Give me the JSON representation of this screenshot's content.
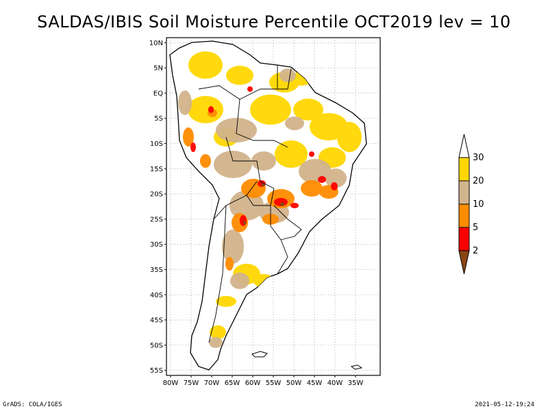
{
  "title": "SALDAS/IBIS Soil Moisture Percentile OCT2019 lev = 10",
  "footer": {
    "left": "GrADS: COLA/IGES",
    "right": "2021-05-12-19:24"
  },
  "map": {
    "lon_range": [
      -81,
      -29
    ],
    "lat_range": [
      -56,
      11
    ],
    "lat_ticks": [
      {
        "value": 10,
        "label": "10N"
      },
      {
        "value": 5,
        "label": "5N"
      },
      {
        "value": 0,
        "label": "EQ"
      },
      {
        "value": -5,
        "label": "5S"
      },
      {
        "value": -10,
        "label": "10S"
      },
      {
        "value": -15,
        "label": "15S"
      },
      {
        "value": -20,
        "label": "20S"
      },
      {
        "value": -25,
        "label": "25S"
      },
      {
        "value": -30,
        "label": "30S"
      },
      {
        "value": -35,
        "label": "35S"
      },
      {
        "value": -40,
        "label": "40S"
      },
      {
        "value": -45,
        "label": "45S"
      },
      {
        "value": -50,
        "label": "50S"
      },
      {
        "value": -55,
        "label": "55S"
      }
    ],
    "lon_ticks": [
      {
        "value": -80,
        "label": "80W"
      },
      {
        "value": -75,
        "label": "75W"
      },
      {
        "value": -70,
        "label": "70W"
      },
      {
        "value": -65,
        "label": "65W"
      },
      {
        "value": -60,
        "label": "60W"
      },
      {
        "value": -55,
        "label": "55W"
      },
      {
        "value": -50,
        "label": "50W"
      },
      {
        "value": -45,
        "label": "45W"
      },
      {
        "value": -40,
        "label": "40W"
      },
      {
        "value": -35,
        "label": "35W"
      }
    ],
    "grid": true
  },
  "colorbar": {
    "bins": [
      {
        "lower": null,
        "upper": 2,
        "color": "#8b4513"
      },
      {
        "lower": 2,
        "upper": 5,
        "color": "#ff0000"
      },
      {
        "lower": 5,
        "upper": 10,
        "color": "#ff8c00"
      },
      {
        "lower": 10,
        "upper": 20,
        "color": "#d2b48c"
      },
      {
        "lower": 20,
        "upper": 30,
        "color": "#ffd700"
      },
      {
        "lower": 30,
        "upper": null,
        "color": "#ffffff"
      }
    ],
    "labels": [
      "2",
      "5",
      "10",
      "20",
      "30"
    ]
  },
  "colors": {
    "dry_low": "#8b4513",
    "red": "#ff0000",
    "orange": "#ff8c00",
    "tan": "#d2b48c",
    "gold": "#ffd700"
  }
}
